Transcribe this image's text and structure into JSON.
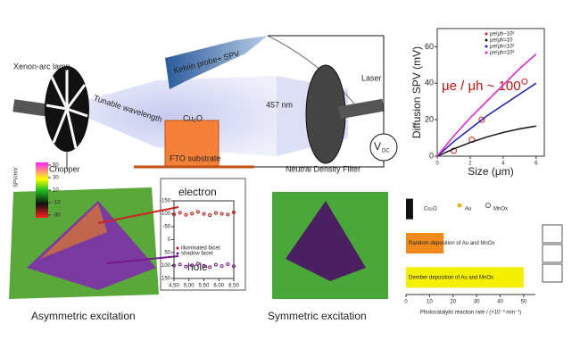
{
  "diagram": {
    "lamp": "Xenon-arc lamp",
    "chopper": "Chopper",
    "tunable": "Tunable wavelength",
    "probe": "Kelvin probe+ SPV",
    "sample": "Cu₂O",
    "wavelength": "457 nm",
    "substrate": "FTO substrate",
    "laser": "Laser",
    "vdc": "V",
    "vdc_sub": "DC",
    "filter": "Neutral Density Filter",
    "caption_left": "Asymmetric excitation",
    "caption_right": "Symmetric excitation",
    "electron": "electron",
    "hole": "hole"
  },
  "colorbar": {
    "label": "SPV/mV",
    "ticks": [
      50,
      30,
      10,
      -10,
      -30
    ]
  },
  "chart_data": [
    {
      "type": "line",
      "xlabel": "Size (μm)",
      "ylabel": "Diffusion SPV (mV)",
      "annotation": "μe / μh ~ 100",
      "xlim": [
        0,
        6.5
      ],
      "ylim": [
        0,
        70
      ],
      "xticks": [
        0,
        2,
        4,
        6
      ],
      "yticks": [
        0,
        20,
        40,
        60
      ],
      "series": [
        {
          "name": "μe/μh~10²",
          "color": "#d62020",
          "marker": "circle",
          "x": [
            1,
            2.1,
            2.7,
            5.3
          ],
          "values": [
            3,
            9,
            20,
            41
          ]
        },
        {
          "name": "μe/μh=10",
          "color": "#111111",
          "x": [
            0,
            1,
            2,
            3,
            4,
            5,
            6
          ],
          "values": [
            0,
            4,
            7.5,
            10.5,
            13,
            15,
            16.5
          ]
        },
        {
          "name": "μe/μh=10²",
          "color": "#1a1ab8",
          "x": [
            0,
            1,
            2,
            3,
            4,
            5,
            6
          ],
          "values": [
            0,
            8,
            15,
            22,
            28,
            34,
            40
          ]
        },
        {
          "name": "μe/μh=10³",
          "color": "#e020d0",
          "x": [
            0,
            1,
            2,
            3,
            4,
            5,
            6
          ],
          "values": [
            0,
            11,
            21,
            30,
            39,
            48,
            56
          ]
        }
      ]
    },
    {
      "type": "hbar",
      "xlabel": "Photocatalytic reaction rate / (×10⁻³ min⁻¹)",
      "categories": [
        "Cu₂O",
        "Random deposition of Au and MnOx",
        "Dember deposition of Au and MnOx"
      ],
      "values": [
        3,
        16,
        50
      ],
      "colors": [
        "#111111",
        "#f08a1c",
        "#f5f000"
      ],
      "legend": [
        "Au",
        "MnOx"
      ],
      "xlim": [
        0,
        55
      ],
      "xticks": [
        0,
        10,
        20,
        30,
        40,
        50
      ]
    },
    {
      "type": "scatter",
      "xlim": [
        4.5,
        6.5
      ],
      "ylim": [
        150,
        -150
      ],
      "xticks": [
        {
          "value": 4.5,
          "label": "4.50"
        },
        {
          "value": 5,
          "label": "5.00"
        },
        {
          "value": 5.5,
          "label": "5.50"
        },
        {
          "value": 6,
          "label": "6.00"
        },
        {
          "value": 6.5,
          "label": "6.50"
        }
      ],
      "yticks": [
        -150,
        -100,
        -50,
        0,
        50,
        100,
        150
      ],
      "series": [
        {
          "name": "illuminated facet",
          "color": "#c01010",
          "x": [
            4.5,
            4.7,
            4.9,
            5.1,
            5.3,
            5.5,
            5.7,
            5.9,
            6.1,
            6.3,
            6.5
          ],
          "values": [
            -98,
            -104,
            -96,
            -101,
            -107,
            -99,
            -95,
            -103,
            -100,
            -97,
            -105
          ]
        },
        {
          "name": "shadow facet",
          "color": "#7a1a8a",
          "x": [
            4.5,
            4.7,
            4.9,
            5.1,
            5.3,
            5.5,
            5.7,
            5.9,
            6.1,
            6.3,
            6.5
          ],
          "values": [
            100,
            96,
            104,
            99,
            93,
            101,
            106,
            97,
            102,
            95,
            103
          ]
        }
      ]
    }
  ]
}
